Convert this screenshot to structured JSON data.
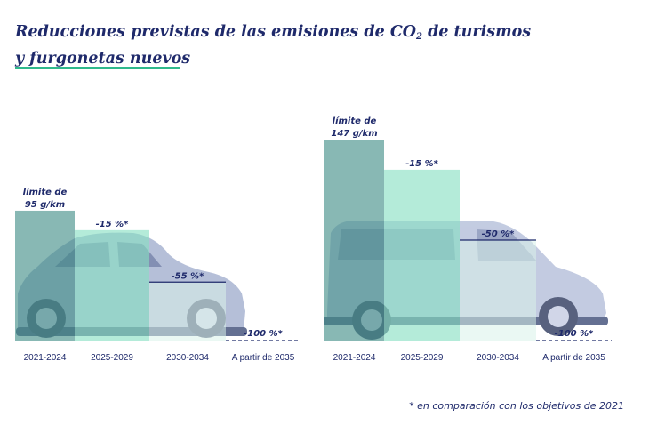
{
  "title": {
    "line1_before": "Reducciones previstas de las emisiones de CO",
    "subscript": "2",
    "line1_after": " de turismos",
    "line2": "y furgonetas nuevos"
  },
  "footnote": "* en comparación con los objetivos de 2021",
  "colors": {
    "title": "#1f2a6b",
    "accent_underline": "#2fb98c",
    "bar_base": "#3f8c86",
    "bar_mid": "#86dfc2",
    "bar_light": "#d8f3ea",
    "dashed": "#1f2a6b"
  },
  "chart_data": [
    {
      "type": "bar",
      "name": "turismos",
      "icon": "car-icon",
      "categories": [
        "2021-2024",
        "2025-2029",
        "2030-2034",
        "A partir de 2035"
      ],
      "values": [
        95,
        80.75,
        42.75,
        0
      ],
      "unit": "g/km",
      "ylim": [
        0,
        147
      ],
      "labels": [
        [
          "límite de",
          "95 g/km"
        ],
        [
          "-15 %*"
        ],
        [
          "-55 %*"
        ],
        [
          "-100 %*"
        ]
      ]
    },
    {
      "type": "bar",
      "name": "furgonetas",
      "icon": "van-icon",
      "categories": [
        "2021-2024",
        "2025-2029",
        "2030-2034",
        "A partir de 2035"
      ],
      "values": [
        147,
        124.95,
        73.5,
        0
      ],
      "unit": "g/km",
      "ylim": [
        0,
        147
      ],
      "labels": [
        [
          "límite de",
          "147 g/km"
        ],
        [
          "-15 %*"
        ],
        [
          "-50 %*"
        ],
        [
          "-100 %*"
        ]
      ]
    }
  ]
}
